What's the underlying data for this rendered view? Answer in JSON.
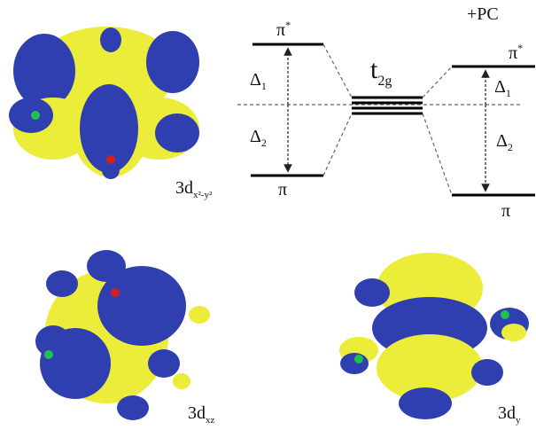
{
  "energy_diagram": {
    "left": {
      "upper": {
        "base": "π",
        "sup": "*"
      },
      "delta1": {
        "base": "Δ",
        "sub": "1"
      },
      "delta2": {
        "base": "Δ",
        "sub": "2"
      },
      "lower": "π"
    },
    "center": {
      "base": "t",
      "sub": "2g"
    },
    "right": {
      "title": "+PC",
      "upper": {
        "base": "π",
        "sup": "*"
      },
      "delta1": {
        "base": "Δ",
        "sub": "1"
      },
      "delta2": {
        "base": "Δ",
        "sub": "2"
      },
      "lower": "π"
    }
  },
  "orbitals": [
    {
      "base": "3d",
      "sub": "x²-y²"
    },
    {
      "base": "3d",
      "sub": "xz"
    },
    {
      "base": "3d",
      "sub": "y"
    }
  ]
}
